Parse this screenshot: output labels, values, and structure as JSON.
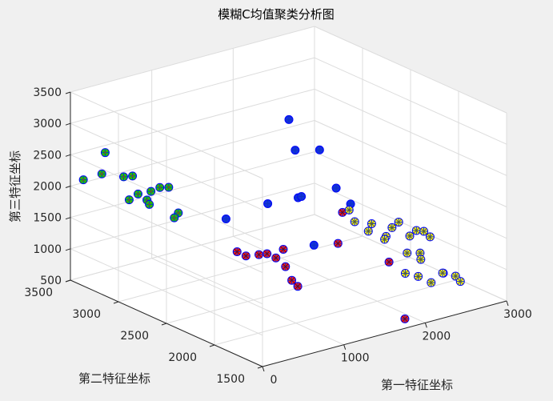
{
  "chart_data": {
    "type": "scatter3d",
    "title": "模糊C均值聚类分析图",
    "xlabel": "第一特征坐标",
    "ylabel": "第二特征坐标",
    "zlabel": "第三特征坐标",
    "xlim": [
      0,
      3000
    ],
    "ylim": [
      1500,
      3500
    ],
    "zlim": [
      500,
      3500
    ],
    "xticks": [
      "0",
      "1000",
      "2000",
      "3000"
    ],
    "yticks": [
      "1500",
      "2000",
      "2500",
      "3000",
      "3500"
    ],
    "zticks": [
      "500",
      "1000",
      "1500",
      "2000",
      "2500",
      "3000",
      "3500"
    ],
    "grid": true,
    "marker_colors": {
      "cluster_1": "#00e000",
      "cluster_2": "#ff2020",
      "cluster_3": "#1030e0",
      "cluster_4": "#ffff30"
    },
    "series": [
      {
        "cluster": "cluster_1",
        "points": [
          [
            100,
            3450,
            2100
          ],
          [
            150,
            3300,
            2280
          ],
          [
            250,
            3350,
            2550
          ],
          [
            300,
            3200,
            2250
          ],
          [
            350,
            3150,
            2280
          ],
          [
            250,
            3100,
            1970
          ],
          [
            300,
            3050,
            2080
          ],
          [
            350,
            3000,
            2000
          ],
          [
            400,
            3000,
            2120
          ],
          [
            450,
            2950,
            2200
          ],
          [
            500,
            2900,
            2220
          ],
          [
            500,
            2800,
            1880
          ],
          [
            450,
            2800,
            1820
          ],
          [
            380,
            3000,
            1920
          ]
        ]
      },
      {
        "cluster": "cluster_2",
        "points": [
          [
            750,
            2400,
            1450
          ],
          [
            800,
            2350,
            1400
          ],
          [
            900,
            2300,
            1420
          ],
          [
            1000,
            2300,
            1400
          ],
          [
            1050,
            2250,
            1350
          ],
          [
            1200,
            2300,
            1400
          ],
          [
            1050,
            2150,
            1280
          ],
          [
            950,
            2000,
            1200
          ],
          [
            1000,
            1980,
            1100
          ],
          [
            1400,
            1900,
            1700
          ],
          [
            1750,
            2150,
            1900
          ],
          [
            1850,
            1750,
            1350
          ],
          [
            1750,
            1500,
            650
          ]
        ]
      },
      {
        "cluster": "cluster_3",
        "points": [
          [
            850,
            2600,
            1800
          ],
          [
            950,
            2250,
            2250
          ],
          [
            1400,
            2150,
            1500
          ],
          [
            1500,
            2400,
            2050
          ],
          [
            1600,
            2450,
            2000
          ],
          [
            1700,
            2600,
            2600
          ],
          [
            1800,
            2750,
            2950
          ],
          [
            1850,
            2150,
            2000
          ],
          [
            2000,
            2600,
            2500
          ],
          [
            1850,
            2300,
            2150
          ]
        ]
      },
      {
        "cluster": "cluster_4",
        "points": [
          [
            1950,
            2250,
            1800
          ],
          [
            1900,
            2150,
            1700
          ],
          [
            2050,
            2100,
            1650
          ],
          [
            1950,
            2050,
            1600
          ],
          [
            2050,
            1950,
            1550
          ],
          [
            2150,
            2050,
            1400
          ],
          [
            2300,
            2100,
            1500
          ],
          [
            2250,
            1900,
            1250
          ],
          [
            2350,
            1850,
            1250
          ],
          [
            2400,
            2000,
            1400
          ],
          [
            2500,
            2200,
            1450
          ],
          [
            2600,
            2100,
            1350
          ],
          [
            2650,
            2000,
            1300
          ],
          [
            2750,
            2150,
            1250
          ],
          [
            2050,
            1750,
            1100
          ],
          [
            2150,
            1700,
            1050
          ],
          [
            2250,
            1650,
            950
          ],
          [
            2400,
            1650,
            1050
          ],
          [
            2450,
            1700,
            1000
          ],
          [
            2550,
            1650,
            950
          ],
          [
            2550,
            1600,
            900
          ],
          [
            2300,
            1800,
            1200
          ]
        ]
      }
    ]
  }
}
